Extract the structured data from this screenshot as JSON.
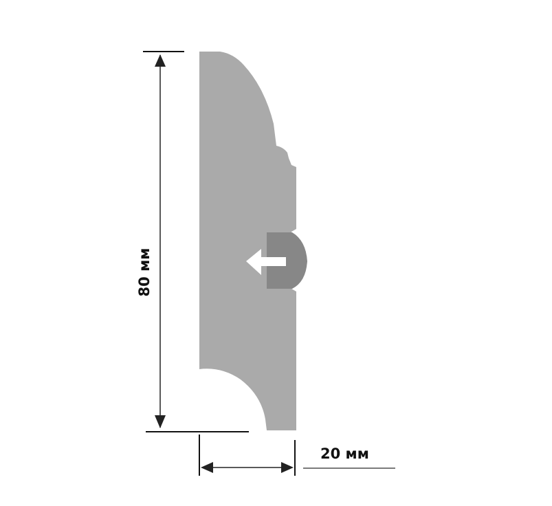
{
  "diagram": {
    "height_dimension": {
      "label": "80 мм",
      "value": 80,
      "unit": "мм"
    },
    "width_dimension": {
      "label": "20 мм",
      "value": 20,
      "unit": "мм"
    }
  },
  "colors": {
    "profile_fill": "#aaaaaa",
    "clip_fill": "#878787",
    "arrow_fill": "#ffffff",
    "dimension_line": "#222222",
    "extension_line": "#111111",
    "label_leader": "#7a7a7a"
  }
}
